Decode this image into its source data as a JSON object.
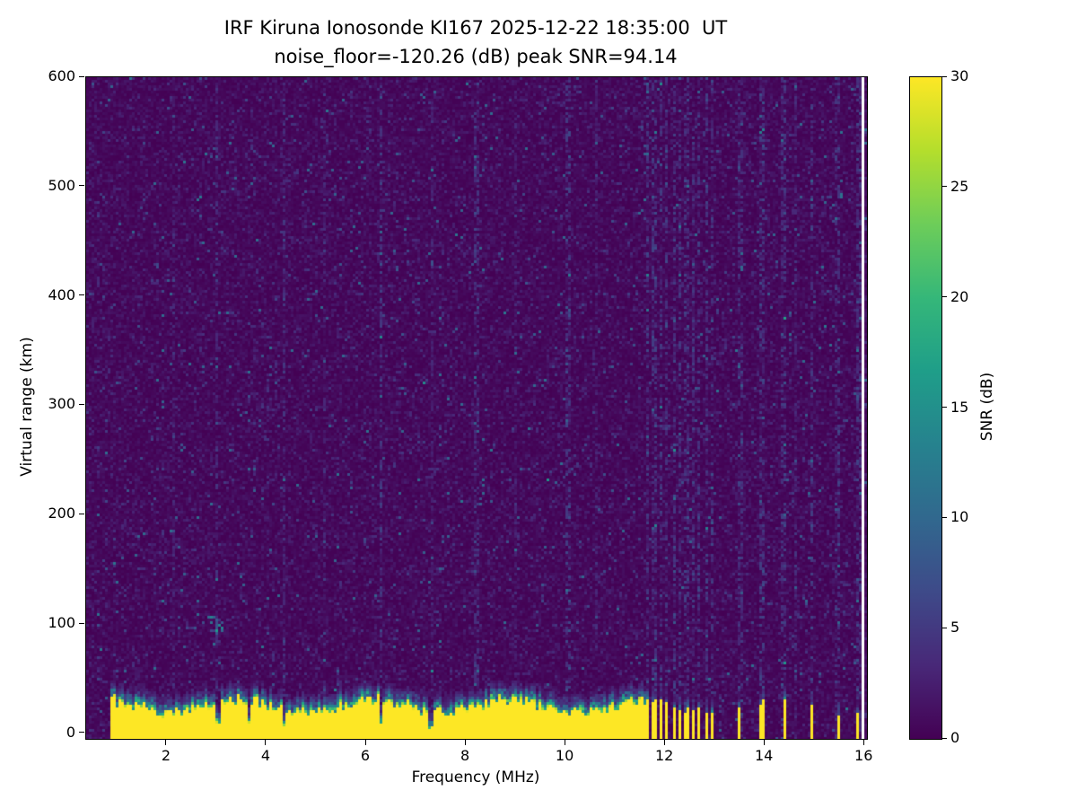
{
  "figure": {
    "title_line1": "IRF Kiruna Ionosonde KI167 2025-12-22 18:35:00  UT",
    "title_line2": "noise_floor=-120.26 (dB) peak SNR=94.14"
  },
  "chart_data": {
    "type": "heatmap",
    "title": "IRF Kiruna Ionosonde KI167 2025-12-22 18:35:00 UT",
    "subtitle": "noise_floor=-120.26 (dB) peak SNR=94.14",
    "station": "IRF Kiruna Ionosonde KI167",
    "timestamp_ut": "2025-12-22 18:35:00",
    "noise_floor_db": -120.26,
    "peak_snr_db": 94.14,
    "xlabel": "Frequency (MHz)",
    "ylabel": "Virtual range (km)",
    "xlim": [
      0.38,
      16.05
    ],
    "ylim": [
      -5,
      600
    ],
    "x_ticks": [
      2,
      4,
      6,
      8,
      10,
      12,
      14,
      16
    ],
    "y_ticks": [
      0,
      100,
      200,
      300,
      400,
      500,
      600
    ],
    "grid": false,
    "colorbar": {
      "label": "SNR (dB)",
      "ticks": [
        0,
        5,
        10,
        15,
        20,
        25,
        30
      ],
      "clim": [
        0,
        30
      ],
      "colormap": "viridis",
      "position": "right"
    },
    "colormap_rgb_stops": [
      [
        68,
        1,
        84
      ],
      [
        72,
        40,
        120
      ],
      [
        62,
        74,
        137
      ],
      [
        49,
        104,
        142
      ],
      [
        38,
        130,
        142
      ],
      [
        31,
        158,
        137
      ],
      [
        53,
        183,
        121
      ],
      [
        109,
        205,
        89
      ],
      [
        180,
        222,
        44
      ],
      [
        253,
        231,
        37
      ]
    ],
    "features": {
      "background_noise_snr_db": [
        0,
        3
      ],
      "ground_clutter": {
        "freq_start_mhz": 0.85,
        "band_top_km_mean": 26,
        "transition_km": 16,
        "notch_freqs_mhz": [
          3.05,
          3.65,
          4.35,
          6.3,
          7.3
        ]
      },
      "barred_band": {
        "from_mhz": 11.62,
        "to_mhz": 13.05,
        "period_mhz": 0.13,
        "duty": 0.48
      },
      "sparse_bars_mhz": [
        13.5,
        13.95,
        14.4,
        14.95,
        15.5,
        15.85
      ],
      "rfi_stripes": [
        [
          2.15,
          0.03,
          1.2
        ],
        [
          3.0,
          0.035,
          2.0
        ],
        [
          4.35,
          0.035,
          2.0
        ],
        [
          5.15,
          0.03,
          1.3
        ],
        [
          6.3,
          0.04,
          2.4
        ],
        [
          7.3,
          0.03,
          1.4
        ],
        [
          8.2,
          0.045,
          2.0
        ],
        [
          9.0,
          0.03,
          1.2
        ],
        [
          10.05,
          0.045,
          2.4
        ],
        [
          10.6,
          0.03,
          1.3
        ],
        [
          13.5,
          0.04,
          2.0
        ],
        [
          13.95,
          0.04,
          2.4
        ],
        [
          14.35,
          0.04,
          2.0
        ],
        [
          14.6,
          0.03,
          1.6
        ],
        [
          14.95,
          0.04,
          2.4
        ],
        [
          15.45,
          0.04,
          2.0
        ],
        [
          15.9,
          0.04,
          1.8
        ]
      ],
      "weak_echo": {
        "freq_mhz": 3.0,
        "range_km": 100
      },
      "missing_column_mhz": [
        15.93,
        15.98
      ]
    }
  }
}
